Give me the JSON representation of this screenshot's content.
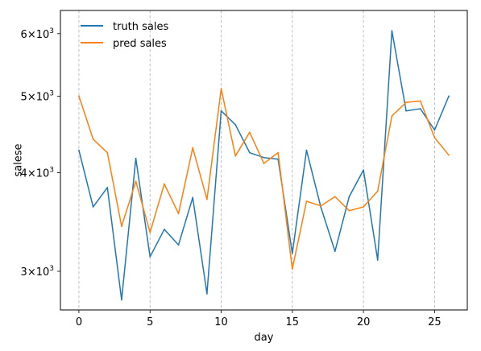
{
  "chart_data": {
    "type": "line",
    "title": "",
    "xlabel": "day",
    "ylabel": "salese",
    "yscale": "log",
    "xlim": [
      -1.3,
      27.3
    ],
    "ylim": [
      2680,
      6420
    ],
    "grid": "x-major-dashed",
    "legend_position": "top-left",
    "x_ticks": [
      0,
      5,
      10,
      15,
      20,
      25
    ],
    "y_ticks": [
      {
        "value": 3000,
        "base": "3×10",
        "exp": "3"
      },
      {
        "value": 4000,
        "base": "4×10",
        "exp": "3"
      },
      {
        "value": 5000,
        "base": "5×10",
        "exp": "3"
      },
      {
        "value": 6000,
        "base": "6×10",
        "exp": "3"
      }
    ],
    "x": [
      0,
      1,
      2,
      3,
      4,
      5,
      6,
      7,
      8,
      9,
      10,
      11,
      12,
      13,
      14,
      15,
      16,
      17,
      18,
      19,
      20,
      21,
      22,
      23,
      24,
      25,
      26
    ],
    "series": [
      {
        "name": "truth sales",
        "color": "#1f77b4",
        "values": [
          4270,
          3620,
          3830,
          2760,
          4170,
          3130,
          3390,
          3240,
          3720,
          2810,
          4790,
          4600,
          4240,
          4180,
          4160,
          3160,
          4270,
          3620,
          3180,
          3730,
          4030,
          3100,
          6050,
          4790,
          4820,
          4530,
          5000
        ]
      },
      {
        "name": "pred sales",
        "color": "#ff7f0e",
        "values": [
          5000,
          4410,
          4240,
          3420,
          3900,
          3360,
          3870,
          3550,
          4300,
          3700,
          5110,
          4200,
          4500,
          4110,
          4240,
          3020,
          3680,
          3630,
          3730,
          3580,
          3620,
          3790,
          4720,
          4910,
          4930,
          4430,
          4210
        ]
      }
    ]
  }
}
